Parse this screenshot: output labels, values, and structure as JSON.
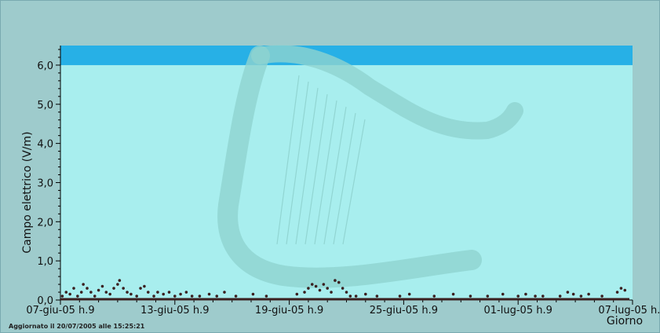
{
  "chart_data": {
    "type": "scatter",
    "ylabel": "Campo elettrico (V/m)",
    "xlabel": "Giorno",
    "y_ticks": [
      "0,0",
      "1,0",
      "2,0",
      "3,0",
      "4,0",
      "5,0",
      "6,0"
    ],
    "x_ticks": [
      "07-giu-05 h.9",
      "13-giu-05 h.9",
      "19-giu-05 h.9",
      "25-giu-05 h.9",
      "01-lug-05 h.9",
      "07-lug-05 h.9"
    ],
    "ylim": [
      0,
      6.5
    ],
    "xlim_days": [
      0,
      30
    ],
    "limit_band": [
      6.0,
      6.5
    ],
    "colors": {
      "plot_bg": "#a8eeee",
      "limit_band": "#27b0e6",
      "frame_bg": "#9ecbcc",
      "points": "#3a2020",
      "watermark": "#8fd3d0"
    },
    "points": [
      {
        "x": 0.1,
        "y": 0.1
      },
      {
        "x": 0.3,
        "y": 0.2
      },
      {
        "x": 0.5,
        "y": 0.15
      },
      {
        "x": 0.7,
        "y": 0.3
      },
      {
        "x": 0.9,
        "y": 0.1
      },
      {
        "x": 1.1,
        "y": 0.2
      },
      {
        "x": 1.2,
        "y": 0.4
      },
      {
        "x": 1.4,
        "y": 0.3
      },
      {
        "x": 1.6,
        "y": 0.2
      },
      {
        "x": 1.8,
        "y": 0.1
      },
      {
        "x": 2.0,
        "y": 0.25
      },
      {
        "x": 2.2,
        "y": 0.35
      },
      {
        "x": 2.4,
        "y": 0.2
      },
      {
        "x": 2.6,
        "y": 0.15
      },
      {
        "x": 2.8,
        "y": 0.3
      },
      {
        "x": 3.0,
        "y": 0.4
      },
      {
        "x": 3.1,
        "y": 0.5
      },
      {
        "x": 3.3,
        "y": 0.3
      },
      {
        "x": 3.5,
        "y": 0.2
      },
      {
        "x": 3.7,
        "y": 0.15
      },
      {
        "x": 4.0,
        "y": 0.1
      },
      {
        "x": 4.2,
        "y": 0.3
      },
      {
        "x": 4.4,
        "y": 0.35
      },
      {
        "x": 4.6,
        "y": 0.2
      },
      {
        "x": 4.9,
        "y": 0.1
      },
      {
        "x": 5.1,
        "y": 0.2
      },
      {
        "x": 5.4,
        "y": 0.15
      },
      {
        "x": 5.7,
        "y": 0.2
      },
      {
        "x": 6.0,
        "y": 0.1
      },
      {
        "x": 6.3,
        "y": 0.15
      },
      {
        "x": 6.6,
        "y": 0.2
      },
      {
        "x": 6.9,
        "y": 0.1
      },
      {
        "x": 7.3,
        "y": 0.1
      },
      {
        "x": 7.8,
        "y": 0.15
      },
      {
        "x": 8.2,
        "y": 0.1
      },
      {
        "x": 8.6,
        "y": 0.2
      },
      {
        "x": 9.2,
        "y": 0.1
      },
      {
        "x": 10.1,
        "y": 0.15
      },
      {
        "x": 10.8,
        "y": 0.1
      },
      {
        "x": 12.4,
        "y": 0.15
      },
      {
        "x": 12.8,
        "y": 0.2
      },
      {
        "x": 13.0,
        "y": 0.3
      },
      {
        "x": 13.2,
        "y": 0.4
      },
      {
        "x": 13.4,
        "y": 0.35
      },
      {
        "x": 13.6,
        "y": 0.25
      },
      {
        "x": 13.8,
        "y": 0.4
      },
      {
        "x": 14.0,
        "y": 0.3
      },
      {
        "x": 14.2,
        "y": 0.2
      },
      {
        "x": 14.4,
        "y": 0.5
      },
      {
        "x": 14.6,
        "y": 0.45
      },
      {
        "x": 14.8,
        "y": 0.3
      },
      {
        "x": 15.0,
        "y": 0.2
      },
      {
        "x": 15.2,
        "y": 0.1
      },
      {
        "x": 15.5,
        "y": 0.1
      },
      {
        "x": 16.0,
        "y": 0.15
      },
      {
        "x": 16.6,
        "y": 0.1
      },
      {
        "x": 17.8,
        "y": 0.1
      },
      {
        "x": 18.3,
        "y": 0.15
      },
      {
        "x": 19.6,
        "y": 0.1
      },
      {
        "x": 20.6,
        "y": 0.15
      },
      {
        "x": 21.5,
        "y": 0.1
      },
      {
        "x": 22.4,
        "y": 0.1
      },
      {
        "x": 23.2,
        "y": 0.15
      },
      {
        "x": 24.0,
        "y": 0.1
      },
      {
        "x": 24.4,
        "y": 0.15
      },
      {
        "x": 24.9,
        "y": 0.1
      },
      {
        "x": 25.3,
        "y": 0.1
      },
      {
        "x": 26.2,
        "y": 0.1
      },
      {
        "x": 26.6,
        "y": 0.2
      },
      {
        "x": 26.9,
        "y": 0.15
      },
      {
        "x": 27.3,
        "y": 0.1
      },
      {
        "x": 27.7,
        "y": 0.15
      },
      {
        "x": 28.4,
        "y": 0.1
      },
      {
        "x": 29.2,
        "y": 0.2
      },
      {
        "x": 29.4,
        "y": 0.3
      },
      {
        "x": 29.6,
        "y": 0.25
      }
    ]
  },
  "footer": {
    "updated": "Aggiornato il 20/07/2005 alle 15:25:21"
  }
}
